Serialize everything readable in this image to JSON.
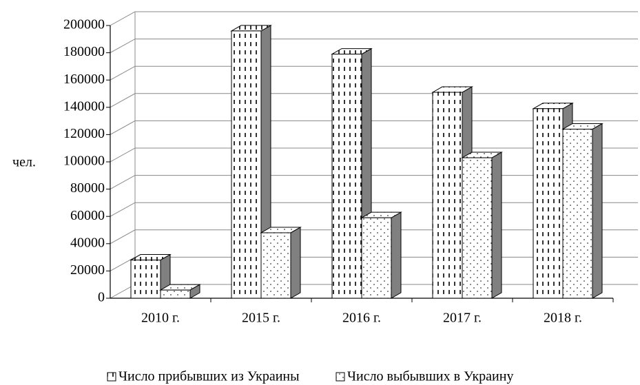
{
  "chart_data": {
    "type": "bar3d",
    "y_label": "чел.",
    "categories": [
      "2010 г.",
      "2015 г.",
      "2016 г.",
      "2017 г.",
      "2018 г."
    ],
    "series": [
      {
        "name": "Число прибывших из Украины",
        "color": "#ffffff",
        "values": [
          28000,
          196000,
          179000,
          151000,
          139000
        ]
      },
      {
        "name": "Число выбывших в Украину",
        "color": "#ffffff",
        "values": [
          6000,
          48000,
          59000,
          103000,
          124000
        ]
      }
    ],
    "ylim": [
      0,
      200000
    ],
    "yticks": [
      0,
      20000,
      40000,
      60000,
      80000,
      100000,
      120000,
      140000,
      160000,
      180000,
      200000
    ],
    "grid": true
  }
}
